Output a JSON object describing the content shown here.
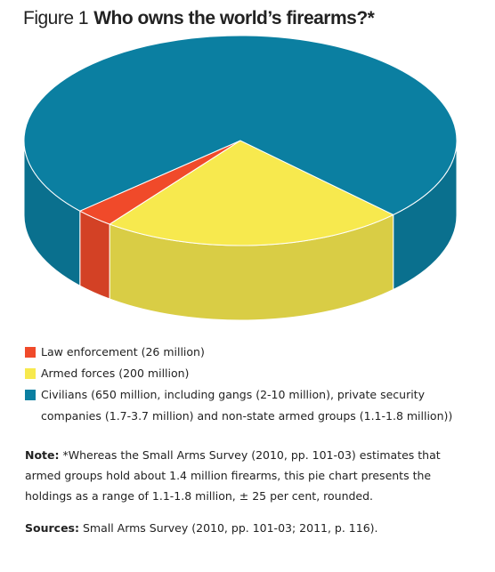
{
  "chart_data": {
    "type": "pie",
    "figure_label": "Figure 1",
    "title": "Who owns the world’s firearms?*",
    "categories": [
      "Law enforcement (26 million)",
      "Armed forces (200 million)",
      "Civilians (650 million, including gangs (2-10 million), private security companies (1.7-3.7 million) and non-state armed groups (1.1-1.8 million))"
    ],
    "values": [
      26,
      200,
      650
    ],
    "colors": [
      "#f04a2a",
      "#f7e94e",
      "#0b7fa1"
    ]
  },
  "note": {
    "label": "Note:",
    "text": "*Whereas the Small Arms Survey (2010, pp. 101-03) estimates that armed groups hold about 1.4 million firearms, this pie chart presents the holdings as a range of 1.1-1.8 million, ± 25 per cent, rounded."
  },
  "sources": {
    "label": "Sources:",
    "text": "Small Arms Survey (2010, pp. 101-03; 2011, p. 116)."
  }
}
